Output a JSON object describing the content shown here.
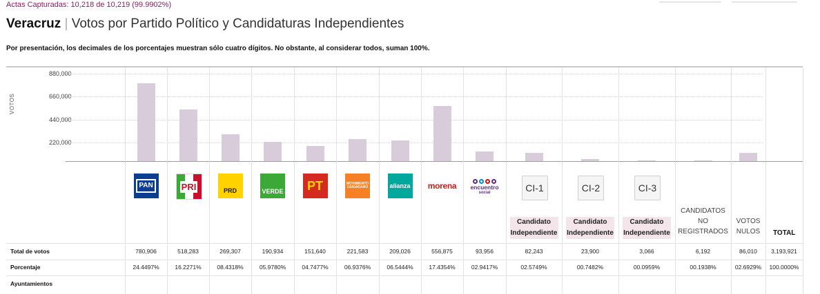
{
  "header": {
    "actas": "Actas Capturadas: 10,218 de 10,219 (99.9902%)",
    "state": "Veracruz",
    "separator": "|",
    "subtitle": "Votos por Partido Político y Candidaturas Independientes",
    "note": "Por presentación, los decimales de los porcentajes muestran sólo cuatro dígitos. No obstante, al considerar todos, suman 100%."
  },
  "chart": {
    "axis_label": "VOTOS",
    "ticks": [
      "880,000",
      "660,000",
      "440,000",
      "220,000"
    ],
    "ymax": 880000
  },
  "parties": [
    {
      "key": "pan",
      "logo_text": "PAN",
      "bg": "#0b3d91",
      "fg": "#ffffff",
      "votes": "780,906",
      "pct": "24.4497%",
      "value": 780906
    },
    {
      "key": "pri",
      "logo_text": "PRI",
      "bg": "#ffffff",
      "fg": "#c8102e",
      "votes": "518,283",
      "pct": "16.2271%",
      "value": 518283
    },
    {
      "key": "prd",
      "logo_text": "PRD",
      "bg": "#ffd200",
      "fg": "#1a1a1a",
      "votes": "269,307",
      "pct": "08.4318%",
      "value": 269307
    },
    {
      "key": "verde",
      "logo_text": "VERDE",
      "bg": "#3aa935",
      "fg": "#ffffff",
      "votes": "190,934",
      "pct": "05.9780%",
      "value": 190934
    },
    {
      "key": "pt",
      "logo_text": "PT",
      "bg": "#d52b1e",
      "fg": "#ffd200",
      "votes": "151,640",
      "pct": "04.7477%",
      "value": 151640
    },
    {
      "key": "mc",
      "logo_text": "MOVIMIENTO CIUDADANO",
      "bg": "#f58025",
      "fg": "#ffffff",
      "votes": "221,583",
      "pct": "06.9376%",
      "value": 221583
    },
    {
      "key": "nueva-alianza",
      "logo_text": "alianza",
      "bg": "#00a79d",
      "fg": "#ffffff",
      "votes": "209,026",
      "pct": "06.5444%",
      "value": 209026
    },
    {
      "key": "morena",
      "logo_text": "morena",
      "bg": "#ffffff",
      "fg": "#b5261e",
      "votes": "556,875",
      "pct": "17.4354%",
      "value": 556875
    },
    {
      "key": "encuentro-social",
      "logo_text": "encuentro",
      "logo_sub": "social",
      "bg": "#ffffff",
      "fg": "#5b2a86",
      "votes": "93,956",
      "pct": "02.9417%",
      "value": 93956
    }
  ],
  "independents": [
    {
      "key": "ci-1",
      "code": "CI-1",
      "label_1": "Candidato",
      "label_2": "Independiente",
      "votes": "82,243",
      "pct": "02.5749%",
      "value": 82243
    },
    {
      "key": "ci-2",
      "code": "CI-2",
      "label_1": "Candidato",
      "label_2": "Independiente",
      "votes": "23,900",
      "pct": "00.7482%",
      "value": 23900
    },
    {
      "key": "ci-3",
      "code": "CI-3",
      "label_1": "Candidato",
      "label_2": "Independiente",
      "votes": "3,066",
      "pct": "00.0959%",
      "value": 3066
    }
  ],
  "others": [
    {
      "key": "no-registrados",
      "label_1": "CANDIDATOS",
      "label_2": "NO",
      "label_3": "REGISTRADOS",
      "votes": "6,192",
      "pct": "00.1938%",
      "value": 6192
    },
    {
      "key": "nulos",
      "label_1": "VOTOS",
      "label_2": "NULOS",
      "votes": "86,010",
      "pct": "02.6929%",
      "value": 86010
    }
  ],
  "total": {
    "label": "TOTAL",
    "votes": "3,193,921",
    "pct": "100.0000%"
  },
  "rows": {
    "total_votos": "Total de votos",
    "porcentaje": "Porcentaje",
    "ayuntamientos": "Ayuntamientos"
  }
}
